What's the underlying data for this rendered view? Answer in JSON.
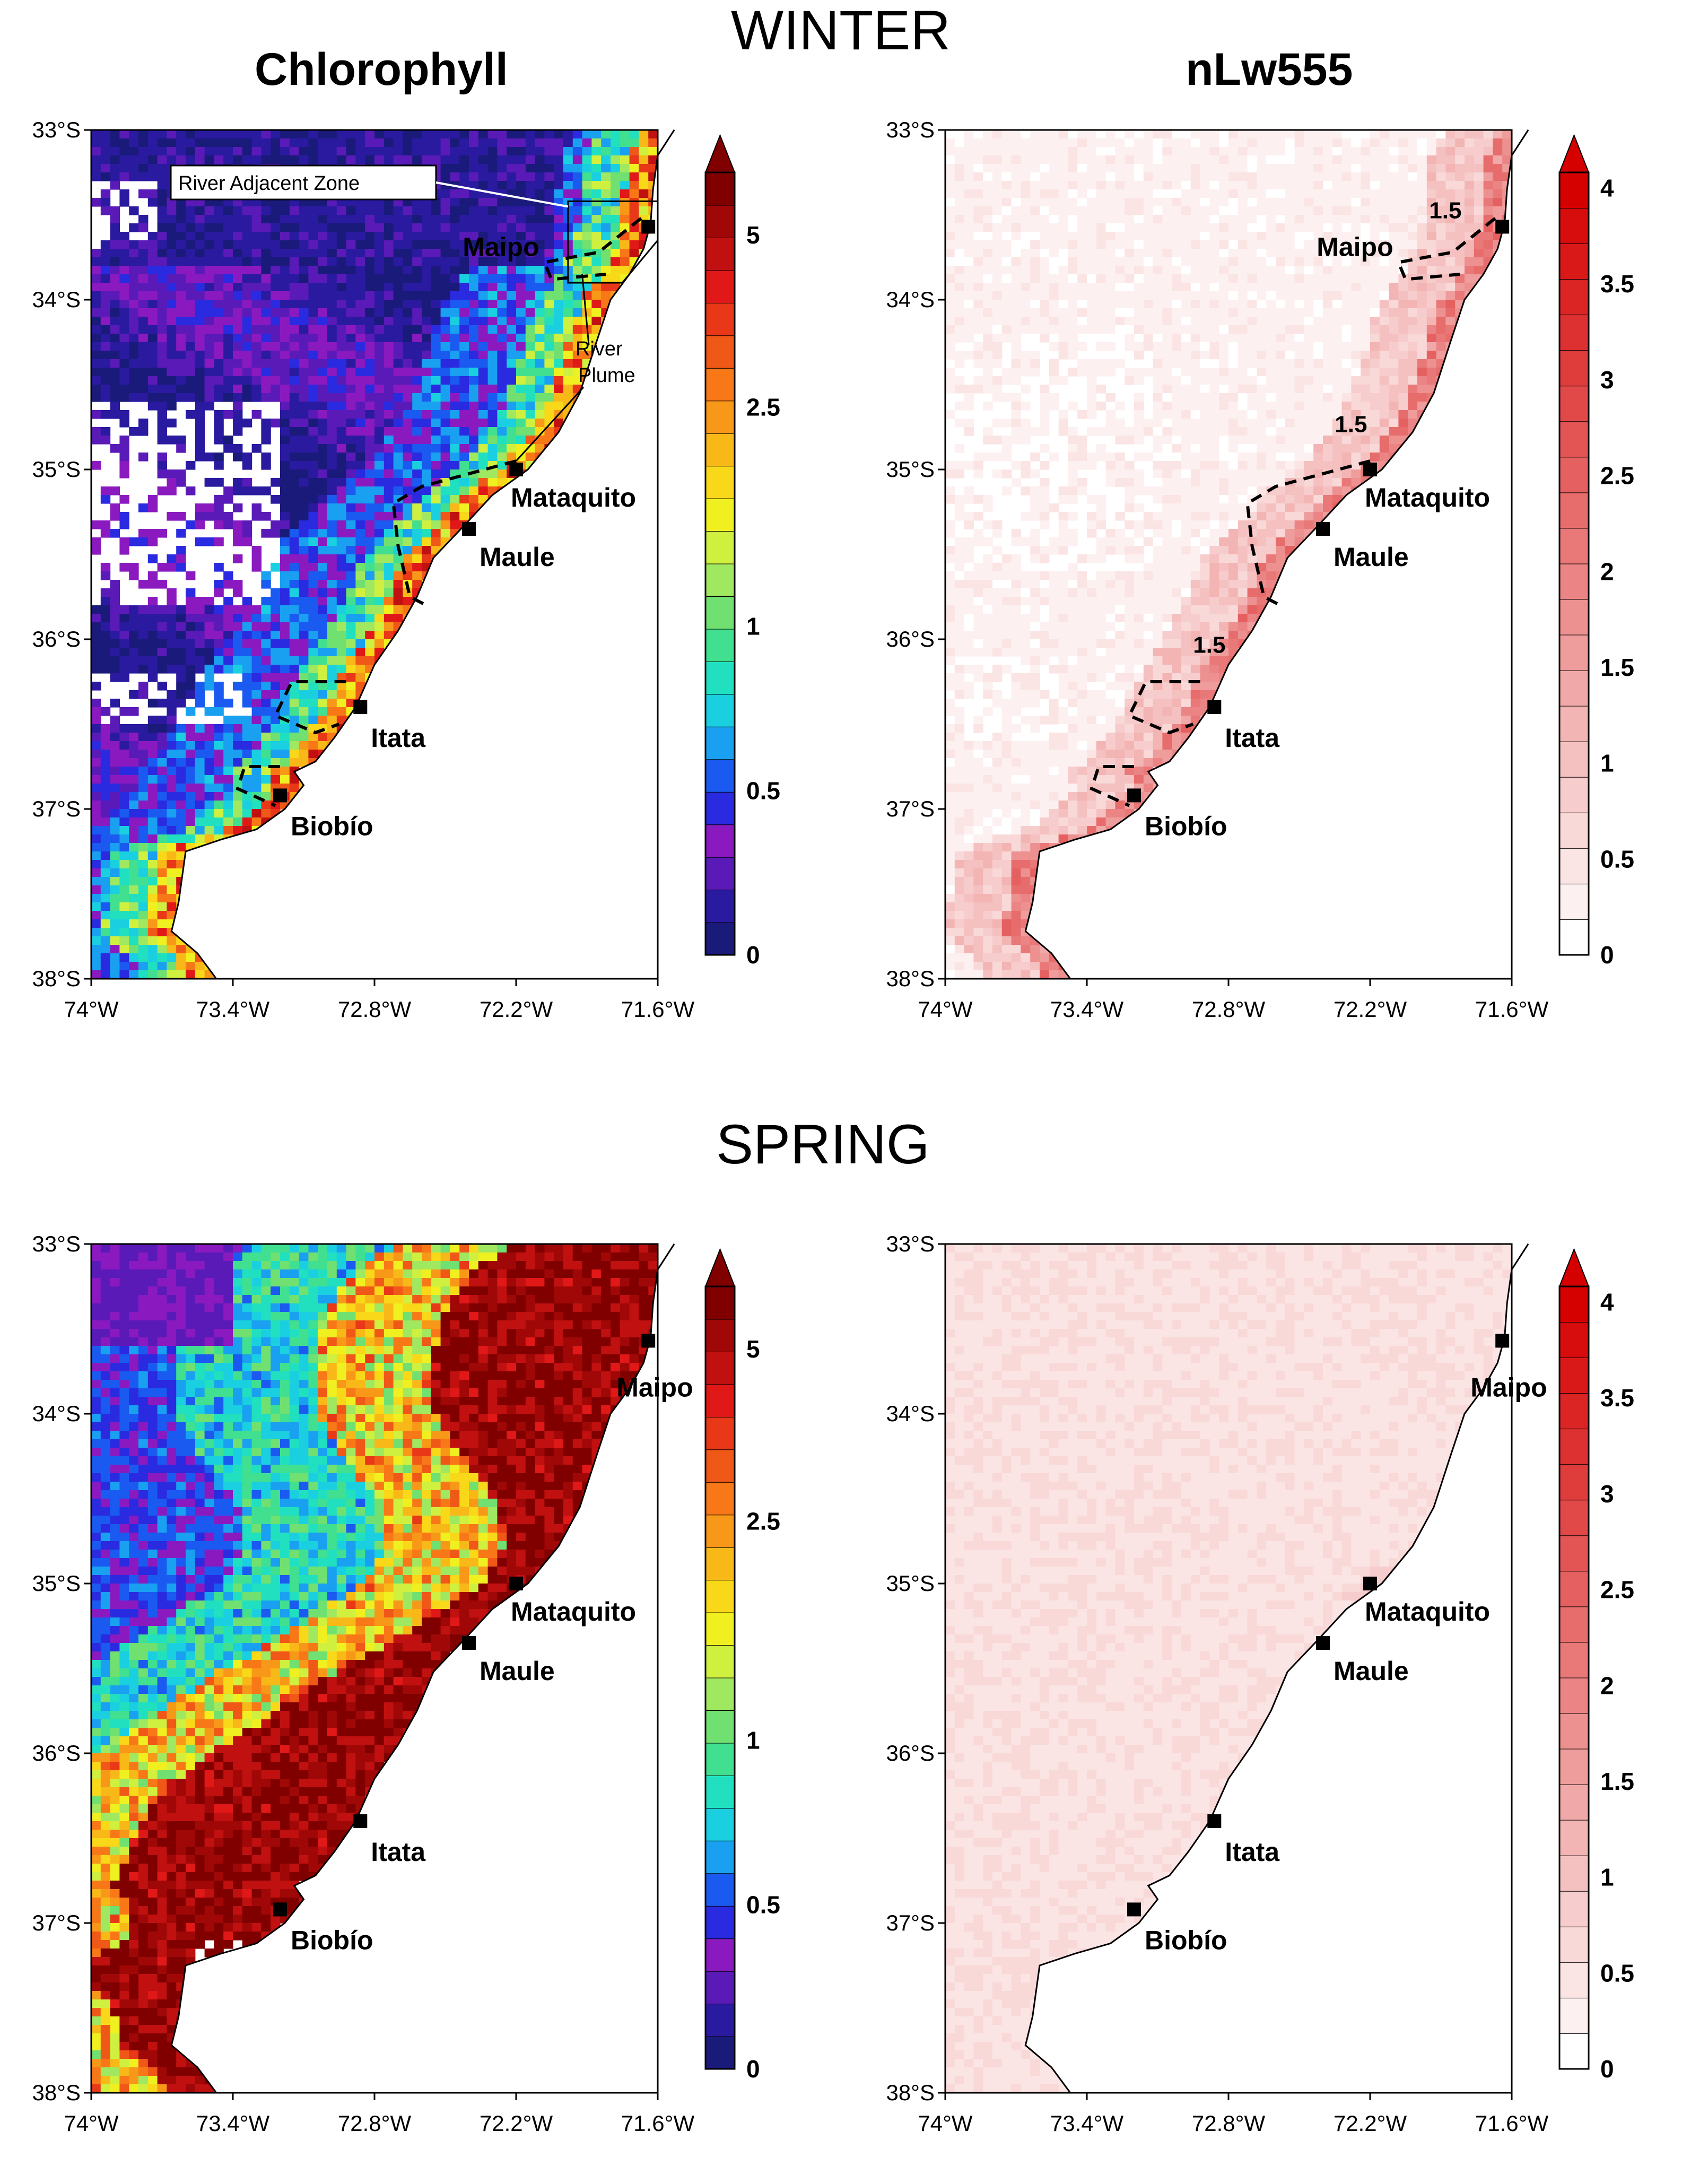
{
  "titles": {
    "winter": "WINTER",
    "spring": "SPRING",
    "chl": "Chlorophyll",
    "nlw": "nLw555"
  },
  "axes": {
    "lat_ticks": [
      "33°S",
      "34°S",
      "35°S",
      "36°S",
      "37°S",
      "38°S"
    ],
    "lon_ticks": [
      "74°W",
      "73.4°W",
      "72.8°W",
      "72.2°W",
      "71.6°W"
    ],
    "lat_range": [
      -38,
      -33
    ],
    "lon_range": [
      -74,
      -71.6
    ]
  },
  "rivers": [
    {
      "name": "Maipo",
      "lon": -71.64,
      "lat": -33.57
    },
    {
      "name": "Mataquito",
      "lon": -72.2,
      "lat": -35.0
    },
    {
      "name": "Maule",
      "lon": -72.4,
      "lat": -35.35
    },
    {
      "name": "Itata",
      "lon": -72.86,
      "lat": -36.4
    },
    {
      "name": "Biobío",
      "lon": -73.2,
      "lat": -36.92
    }
  ],
  "annotations": {
    "raz": "River Adjacent Zone",
    "plume_l1": "River",
    "plume_l2": "Plume",
    "contour_value": "1.5"
  },
  "colorbars": {
    "chl": {
      "labels": [
        "5",
        "2.5",
        "1",
        "0.5",
        "0"
      ],
      "label_values": [
        5,
        2.5,
        1,
        0.5,
        0
      ]
    },
    "nlw": {
      "labels": [
        "4",
        "3.5",
        "3",
        "2.5",
        "2",
        "1.5",
        "1",
        "0.5",
        "0"
      ],
      "label_values": [
        4,
        3.5,
        3,
        2.5,
        2,
        1.5,
        1,
        0.5,
        0
      ]
    }
  },
  "colors": {
    "chl_scale": [
      "#1a1a7a",
      "#2a1aa0",
      "#5a1ab8",
      "#8a1ac0",
      "#2a2ae0",
      "#1a5af0",
      "#1aa0f0",
      "#1ad0e0",
      "#20e0c0",
      "#40e090",
      "#70e070",
      "#a0e860",
      "#d0f040",
      "#f0f020",
      "#f8d818",
      "#f8b818",
      "#f89818",
      "#f87818",
      "#f05818",
      "#e83818",
      "#e01818",
      "#c01010",
      "#a00808",
      "#800000"
    ],
    "nlw_scale": [
      "#ffffff",
      "#fdf0f0",
      "#fbe4e4",
      "#f9d8d8",
      "#f7cccc",
      "#f5c0c0",
      "#f3b4b4",
      "#f1a8a8",
      "#ef9c9c",
      "#ed9090",
      "#eb8484",
      "#e97878",
      "#e76c6c",
      "#e56060",
      "#e35454",
      "#e14848",
      "#df3c3c",
      "#dd3030",
      "#db2424",
      "#d91818",
      "#d70c0c",
      "#d50000"
    ],
    "land": "#ffffff",
    "coast": "#000000"
  }
}
